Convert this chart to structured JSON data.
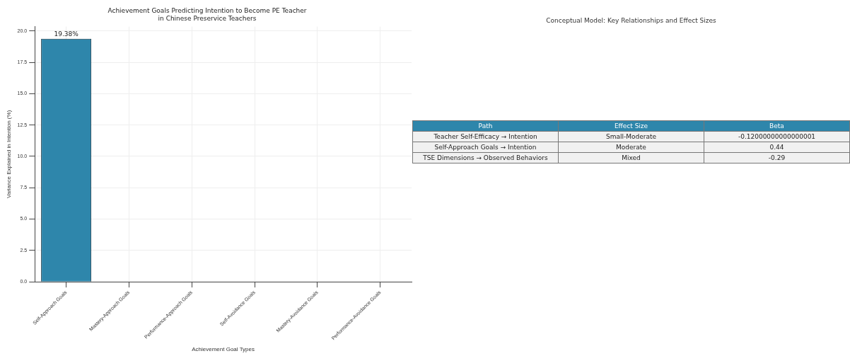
{
  "chart_data": [
    {
      "type": "bar",
      "title": "Achievement Goals Predicting Intention to Become PE Teacher\nin Chinese Preservice Teachers",
      "xlabel": "Achievement Goal Types",
      "ylabel": "Variance Explained in Intention (%)",
      "categories": [
        "Self-Approach Goals",
        "Mastery-Approach Goals",
        "Performance-Approach Goals",
        "Self-Avoidance Goals",
        "Mastery-Avoidance Goals",
        "Performance-Avoidance Goals"
      ],
      "values": [
        19.38,
        0,
        0,
        0,
        0,
        0
      ],
      "value_labels": [
        "19.38%",
        null,
        null,
        null,
        null,
        null
      ],
      "color": "#2e86ab",
      "ylim": [
        0,
        20.35
      ],
      "yticks": [
        {
          "value": 0,
          "label": "0.0"
        },
        2.5,
        {
          "value": 5,
          "label": "5.0"
        },
        7.5,
        {
          "value": 10,
          "label": "10.0"
        },
        12.5,
        {
          "value": 15,
          "label": "15.0"
        },
        17.5,
        {
          "value": 20,
          "label": "20.0"
        }
      ],
      "grid": true
    },
    {
      "type": "other",
      "title": "Conceptual Model: Key Relationships and Effect Sizes",
      "annotations": [
        "Path",
        "Effect Size",
        "Beta",
        "Teacher Self-Efficacy → Intention",
        "Small-Moderate",
        "-0.12000000000000001",
        "Self-Approach Goals → Intention",
        "Moderate",
        "0.44",
        "TSE Dimensions → Observed Behaviors",
        "Mixed",
        "-0.29"
      ]
    }
  ]
}
